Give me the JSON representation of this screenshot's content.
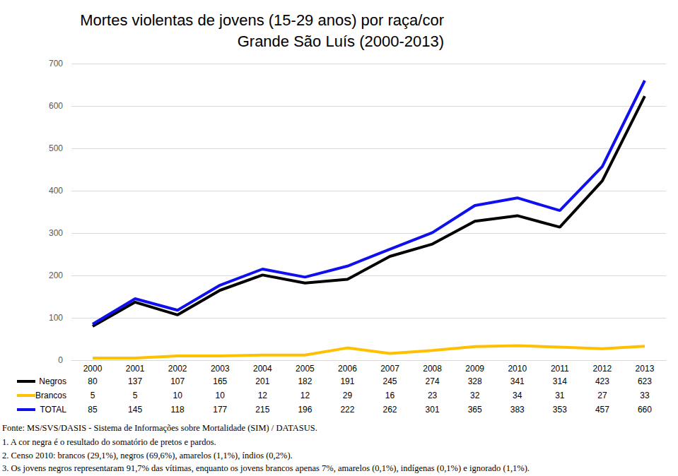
{
  "chart_data": {
    "type": "line",
    "title": "Mortes violentas de jovens (15-29 anos) por raça/cor",
    "subtitle": "Grande São Luís (2000-2013)",
    "categories": [
      "2000",
      "2001",
      "2002",
      "2003",
      "2004",
      "2005",
      "2006",
      "2007",
      "2008",
      "2009",
      "2010",
      "2011",
      "2012",
      "2013"
    ],
    "series": [
      {
        "name": "Negros",
        "color": "#000000",
        "values": [
          80,
          137,
          107,
          165,
          201,
          182,
          191,
          245,
          274,
          328,
          341,
          314,
          423,
          623
        ]
      },
      {
        "name": "Brancos",
        "color": "#ffc000",
        "values": [
          5,
          5,
          10,
          10,
          12,
          12,
          29,
          16,
          23,
          32,
          34,
          31,
          27,
          33
        ]
      },
      {
        "name": "TOTAL",
        "color": "#1010ee",
        "values": [
          85,
          145,
          118,
          177,
          215,
          196,
          222,
          262,
          301,
          365,
          383,
          353,
          457,
          660
        ]
      }
    ],
    "ylim": [
      0,
      700
    ],
    "yticks": [
      0,
      100,
      200,
      300,
      400,
      500,
      600,
      700
    ],
    "grid": true,
    "data_labels": true,
    "annotations": [
      "Fonte: MS/SVS/DASIS - Sistema de Informações sobre Mortalidade (SIM) / DATASUS.",
      "1. A cor negra é o resultado do somatório de pretos e pardos.",
      "2. Censo 2010: brancos (29,1%), negros (69,6%), amarelos (1,1%), índios (0,2%).",
      "3. Os jovens negros representaram 91,7% das vítimas, enquanto os jovens brancos apenas 7%, amarelos (0,1%), indígenas (0,1%) e ignorado (1,1%)."
    ]
  }
}
